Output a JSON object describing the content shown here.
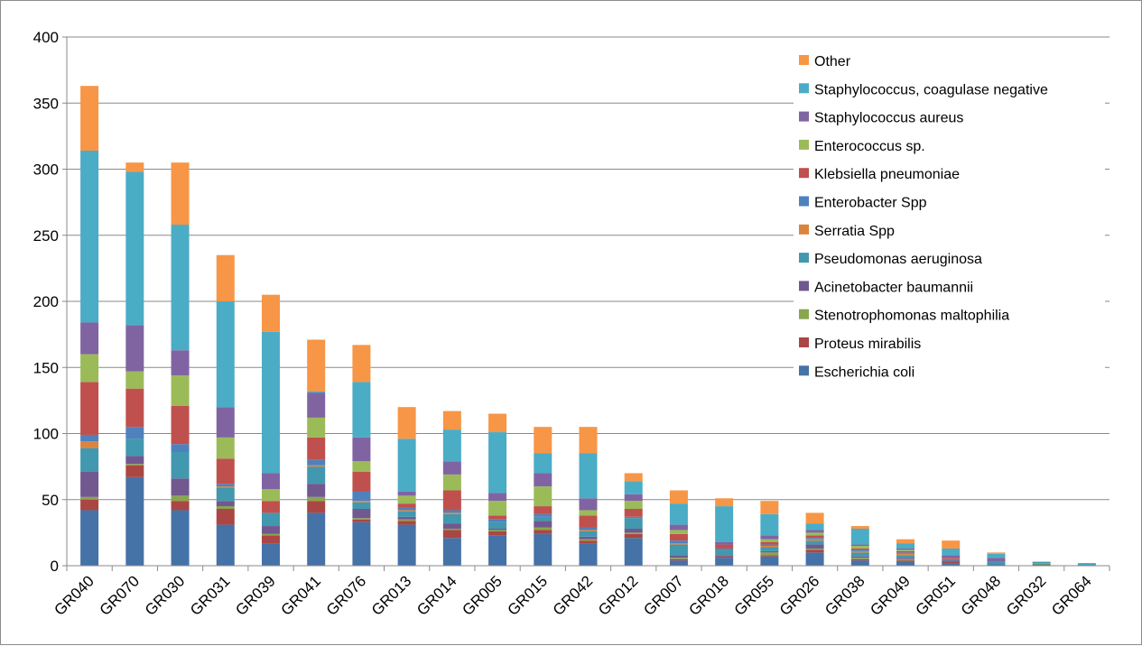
{
  "chart_data": {
    "type": "bar",
    "stacked": true,
    "title": "",
    "xlabel": "",
    "ylabel": "",
    "ylim": [
      0,
      400
    ],
    "yticks": [
      0,
      50,
      100,
      150,
      200,
      250,
      300,
      350,
      400
    ],
    "grid": true,
    "legend_position": "top-right",
    "categories": [
      "GR040",
      "GR070",
      "GR030",
      "GR031",
      "GR039",
      "GR041",
      "GR076",
      "GR013",
      "GR014",
      "GR005",
      "GR015",
      "GR042",
      "GR012",
      "GR007",
      "GR018",
      "GR055",
      "GR026",
      "GR038",
      "GR049",
      "GR051",
      "GR048",
      "GR032",
      "GR064"
    ],
    "series": [
      {
        "name": "Escherichia coli",
        "color": "#4572A7",
        "values": [
          42,
          67,
          42,
          31,
          17,
          40,
          33,
          31,
          21,
          23,
          24,
          17,
          21,
          4,
          6,
          7,
          10,
          4,
          3,
          2,
          1,
          1,
          0
        ]
      },
      {
        "name": "Proteus mirabilis",
        "color": "#AA4643",
        "values": [
          8,
          9,
          7,
          12,
          6,
          9,
          2,
          3,
          6,
          3,
          3,
          2,
          3,
          1,
          1,
          1,
          2,
          1,
          1,
          1,
          0,
          0,
          0
        ]
      },
      {
        "name": "Stenotrophomonas maltophilia",
        "color": "#89A54E",
        "values": [
          2,
          1,
          4,
          2,
          1,
          3,
          1,
          1,
          1,
          1,
          2,
          1,
          1,
          1,
          0,
          2,
          1,
          1,
          1,
          0,
          0,
          1,
          0
        ]
      },
      {
        "name": "Acinetobacter baumannii",
        "color": "#71588F",
        "values": [
          19,
          6,
          13,
          4,
          6,
          10,
          7,
          2,
          4,
          1,
          5,
          2,
          3,
          2,
          1,
          1,
          3,
          1,
          1,
          1,
          0,
          0,
          0
        ]
      },
      {
        "name": "Pseudomonas aeruginosa",
        "color": "#4198AF",
        "values": [
          18,
          13,
          20,
          10,
          10,
          13,
          5,
          4,
          7,
          5,
          3,
          4,
          8,
          8,
          4,
          3,
          3,
          3,
          2,
          1,
          2,
          1,
          1
        ]
      },
      {
        "name": "Serratia Spp",
        "color": "#DB843D",
        "values": [
          5,
          0,
          0,
          1,
          0,
          1,
          1,
          1,
          1,
          0,
          0,
          1,
          0,
          1,
          0,
          1,
          1,
          1,
          1,
          0,
          0,
          0,
          0
        ]
      },
      {
        "name": "Enterobacter Spp",
        "color": "#4F81BD",
        "values": [
          5,
          9,
          6,
          2,
          0,
          4,
          7,
          2,
          2,
          2,
          2,
          2,
          1,
          2,
          1,
          1,
          1,
          1,
          1,
          0,
          0,
          0,
          0
        ]
      },
      {
        "name": "Klebsiella pneumoniae",
        "color": "#C0504D",
        "values": [
          40,
          29,
          29,
          19,
          9,
          17,
          15,
          3,
          15,
          3,
          6,
          9,
          6,
          5,
          3,
          2,
          2,
          1,
          1,
          1,
          0,
          0,
          0
        ]
      },
      {
        "name": "Enterococcus sp.",
        "color": "#9BBB59",
        "values": [
          21,
          13,
          23,
          16,
          9,
          15,
          8,
          6,
          12,
          11,
          15,
          4,
          6,
          3,
          0,
          2,
          2,
          2,
          1,
          0,
          0,
          0,
          0
        ]
      },
      {
        "name": "Staphylococcus aureus",
        "color": "#8064A2",
        "values": [
          24,
          35,
          19,
          23,
          12,
          19,
          18,
          3,
          10,
          6,
          10,
          9,
          5,
          4,
          2,
          3,
          2,
          1,
          1,
          2,
          3,
          0,
          0
        ]
      },
      {
        "name": "Staphylococcus, coagulase negative",
        "color": "#4BACC6",
        "values": [
          130,
          116,
          95,
          80,
          107,
          1,
          42,
          40,
          24,
          46,
          15,
          34,
          10,
          16,
          27,
          16,
          5,
          12,
          4,
          5,
          3,
          0,
          1
        ]
      },
      {
        "name": "Other",
        "color": "#F79646",
        "values": [
          49,
          7,
          47,
          35,
          28,
          39,
          28,
          24,
          14,
          14,
          20,
          20,
          6,
          10,
          6,
          10,
          8,
          2,
          3,
          6,
          1,
          0,
          0
        ]
      }
    ]
  }
}
